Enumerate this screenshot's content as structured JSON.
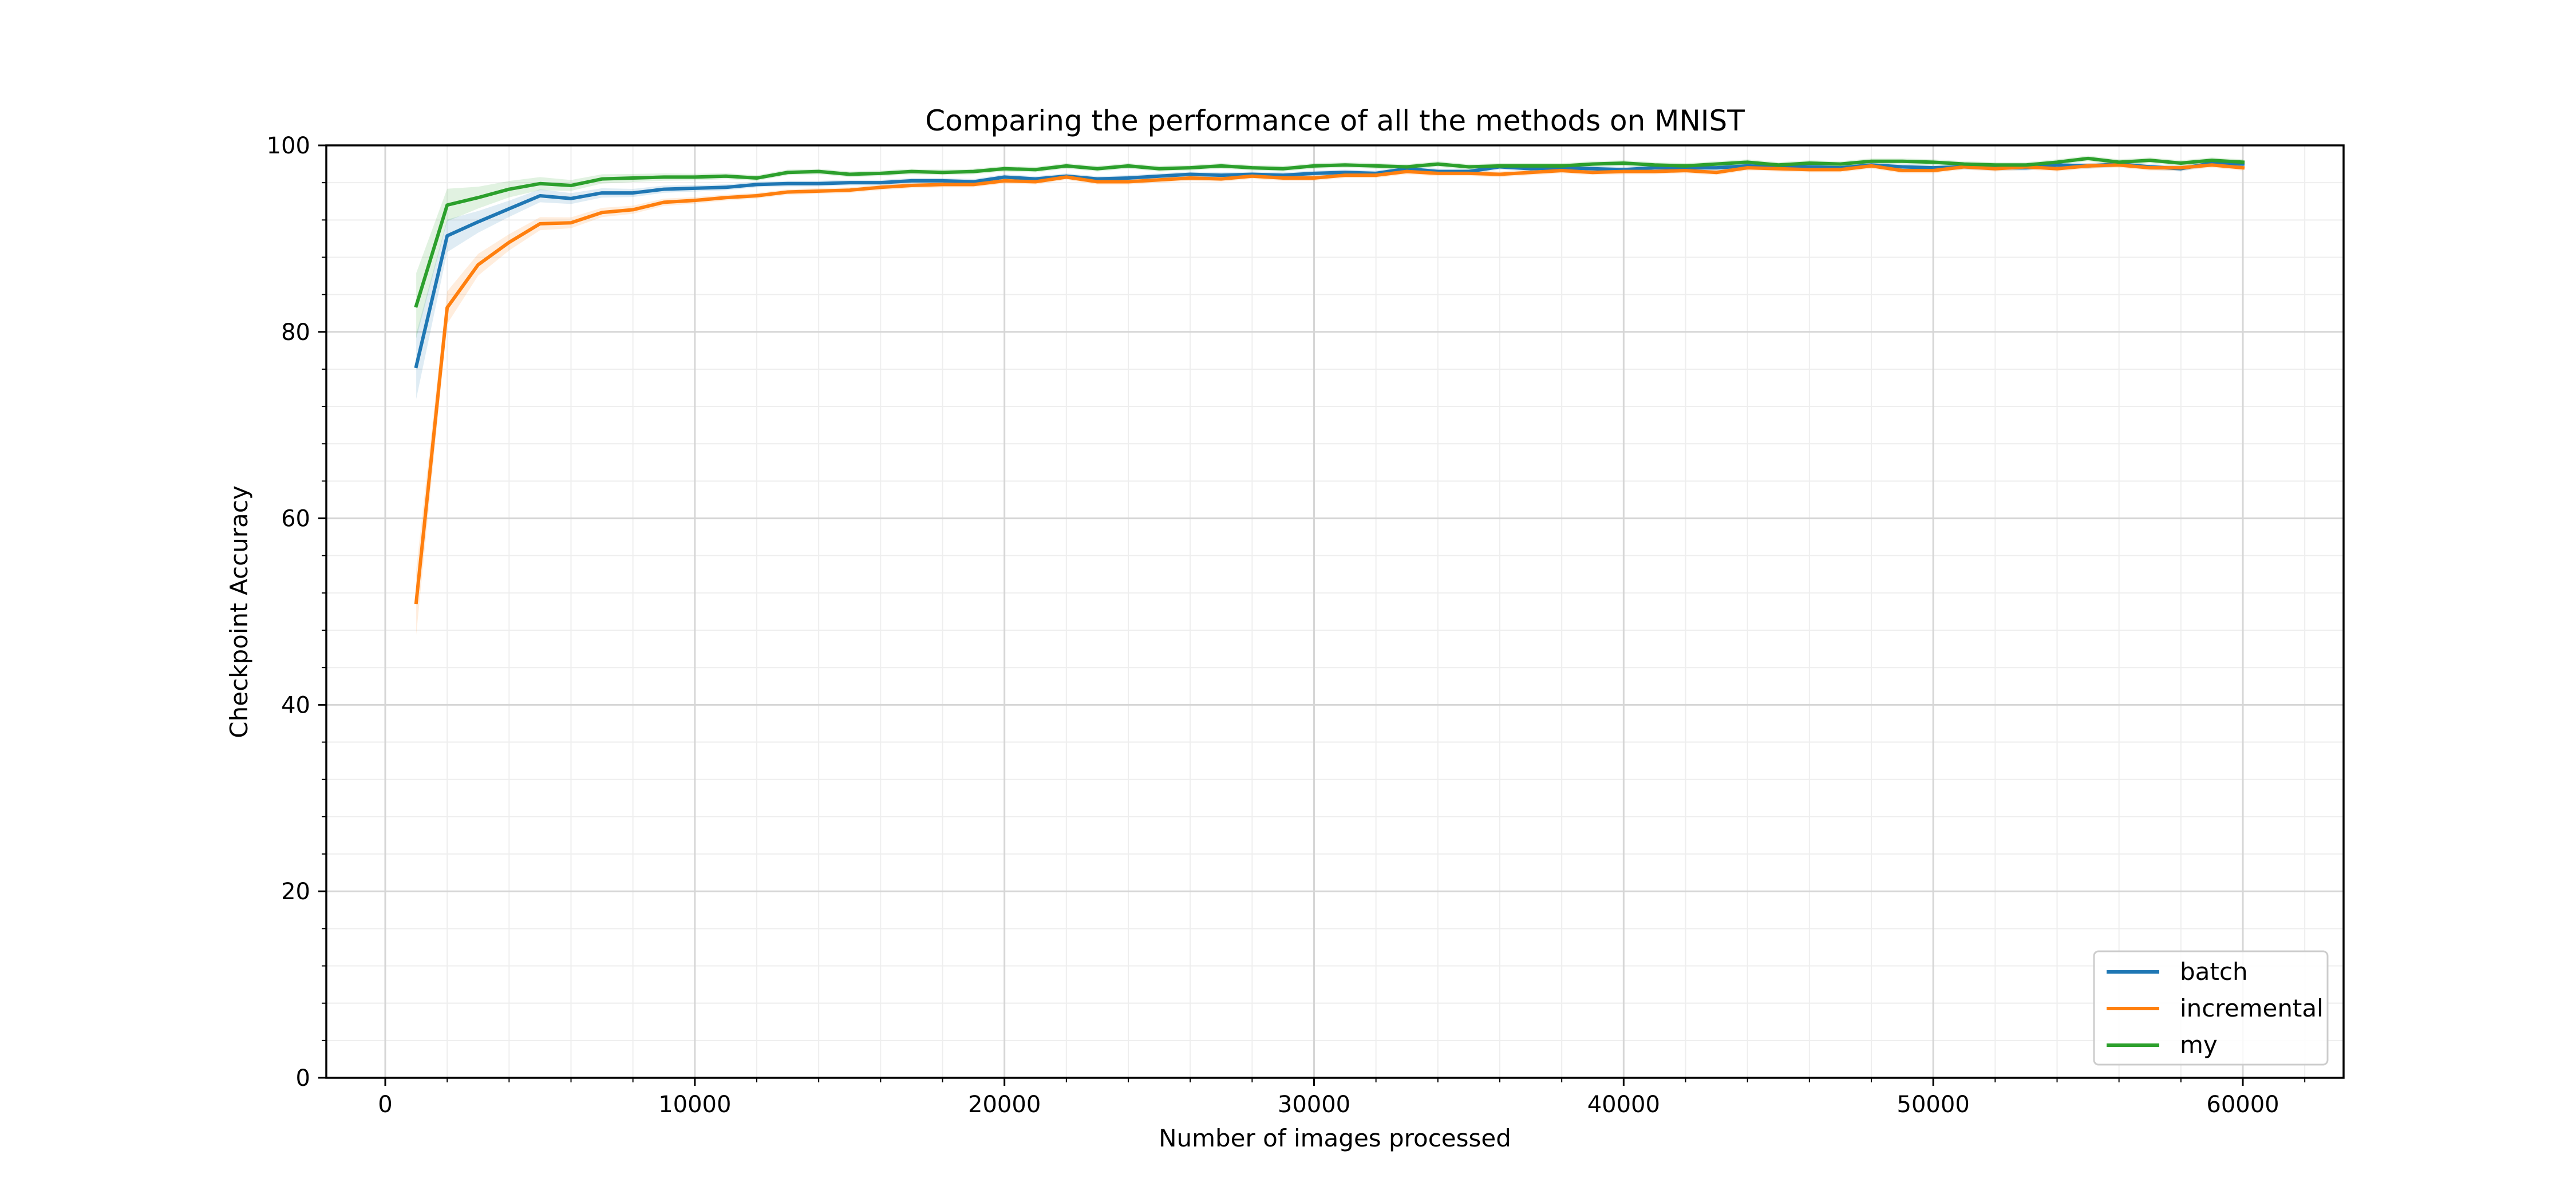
{
  "chart_data": {
    "type": "line",
    "title": "Comparing the performance of all the methods on MNIST",
    "xlabel": "Number of images processed",
    "ylabel": "Checkpoint Accuracy",
    "xlim": [
      -2000,
      63000
    ],
    "ylim": [
      0,
      100
    ],
    "xticks": [
      0,
      10000,
      20000,
      30000,
      40000,
      50000,
      60000
    ],
    "yticks": [
      0,
      20,
      40,
      60,
      80,
      100
    ],
    "grid": true,
    "legend_position": "lower-right",
    "x": [
      1000,
      2000,
      3000,
      4000,
      5000,
      6000,
      7000,
      8000,
      9000,
      10000,
      11000,
      12000,
      13000,
      14000,
      15000,
      16000,
      17000,
      18000,
      19000,
      20000,
      21000,
      22000,
      23000,
      24000,
      25000,
      26000,
      27000,
      28000,
      29000,
      30000,
      31000,
      32000,
      33000,
      34000,
      35000,
      36000,
      37000,
      38000,
      39000,
      40000,
      41000,
      42000,
      43000,
      44000,
      45000,
      46000,
      47000,
      48000,
      49000,
      50000,
      51000,
      52000,
      53000,
      54000,
      55000,
      56000,
      57000,
      58000,
      59000,
      60000
    ],
    "series": [
      {
        "name": "batch",
        "color": "#1f77b4",
        "values": [
          76.3,
          90.3,
          91.8,
          93.2,
          94.6,
          94.3,
          94.9,
          94.9,
          95.3,
          95.4,
          95.5,
          95.8,
          95.9,
          95.9,
          96.0,
          96.0,
          96.2,
          96.2,
          96.1,
          96.6,
          96.4,
          96.7,
          96.4,
          96.5,
          96.7,
          96.9,
          96.8,
          96.9,
          96.8,
          97.0,
          97.1,
          97.0,
          97.5,
          97.2,
          97.2,
          97.7,
          97.5,
          97.6,
          97.5,
          97.4,
          97.6,
          97.6,
          97.6,
          97.8,
          97.7,
          97.7,
          97.6,
          97.9,
          97.7,
          97.6,
          97.7,
          97.6,
          97.6,
          97.9,
          97.8,
          98.0,
          97.7,
          97.5,
          98.1,
          98.0
        ]
      },
      {
        "name": "incremental",
        "color": "#ff7f0e",
        "values": [
          51.0,
          82.6,
          87.2,
          89.6,
          91.6,
          91.7,
          92.8,
          93.1,
          93.9,
          94.1,
          94.4,
          94.6,
          95.0,
          95.1,
          95.2,
          95.5,
          95.7,
          95.8,
          95.8,
          96.2,
          96.1,
          96.6,
          96.1,
          96.1,
          96.3,
          96.5,
          96.4,
          96.7,
          96.5,
          96.5,
          96.8,
          96.8,
          97.2,
          97.0,
          97.0,
          96.9,
          97.1,
          97.3,
          97.1,
          97.2,
          97.2,
          97.3,
          97.1,
          97.6,
          97.5,
          97.4,
          97.4,
          97.8,
          97.3,
          97.3,
          97.7,
          97.5,
          97.7,
          97.5,
          97.8,
          97.9,
          97.6,
          97.6,
          97.9,
          97.6
        ]
      },
      {
        "name": "my",
        "color": "#2ca02c",
        "values": [
          82.8,
          93.6,
          94.4,
          95.3,
          95.9,
          95.7,
          96.4,
          96.5,
          96.6,
          96.6,
          96.7,
          96.5,
          97.1,
          97.2,
          96.9,
          97.0,
          97.2,
          97.1,
          97.2,
          97.5,
          97.4,
          97.8,
          97.5,
          97.8,
          97.5,
          97.6,
          97.8,
          97.6,
          97.5,
          97.8,
          97.9,
          97.8,
          97.7,
          98.0,
          97.7,
          97.8,
          97.8,
          97.8,
          98.0,
          98.1,
          97.9,
          97.8,
          98.0,
          98.2,
          97.9,
          98.1,
          98.0,
          98.3,
          98.3,
          98.2,
          98.0,
          97.9,
          97.9,
          98.2,
          98.6,
          98.2,
          98.4,
          98.1,
          98.4,
          98.2
        ]
      }
    ]
  }
}
